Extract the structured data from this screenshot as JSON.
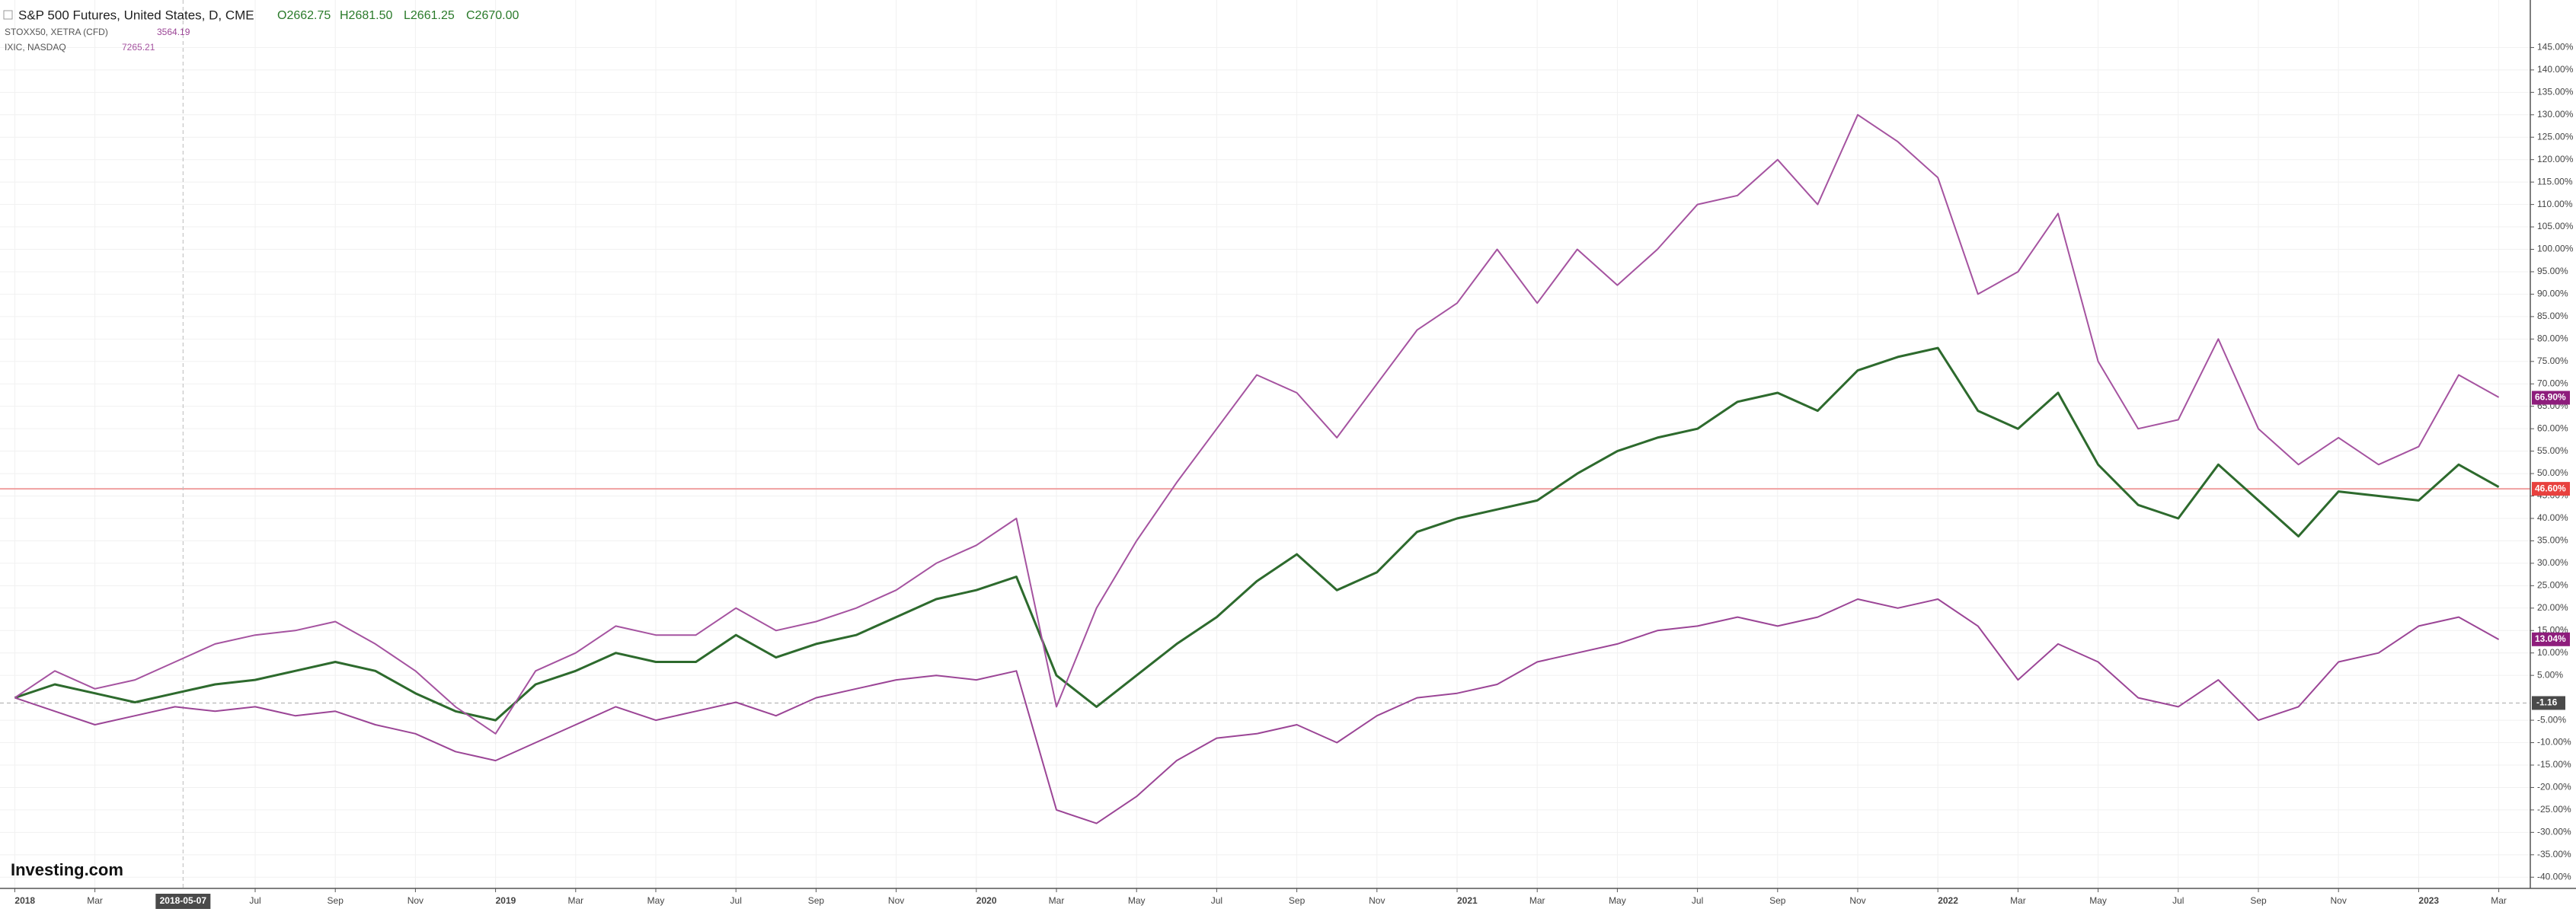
{
  "chart_data": {
    "type": "line",
    "title": "S&P 500 Futures, United States, D, CME",
    "ohlc": [
      "O2662.75",
      "H2681.50",
      "L2661.25",
      "C2670.00"
    ],
    "watermark": "Investing.com",
    "x": [
      "2018-01",
      "2018-02",
      "2018-03",
      "2018-04",
      "2018-05",
      "2018-06",
      "2018-07",
      "2018-08",
      "2018-09",
      "2018-10",
      "2018-11",
      "2018-12",
      "2019-01",
      "2019-02",
      "2019-03",
      "2019-04",
      "2019-05",
      "2019-06",
      "2019-07",
      "2019-08",
      "2019-09",
      "2019-10",
      "2019-11",
      "2019-12",
      "2020-01",
      "2020-02",
      "2020-03",
      "2020-04",
      "2020-05",
      "2020-06",
      "2020-07",
      "2020-08",
      "2020-09",
      "2020-10",
      "2020-11",
      "2020-12",
      "2021-01",
      "2021-02",
      "2021-03",
      "2021-04",
      "2021-05",
      "2021-06",
      "2021-07",
      "2021-08",
      "2021-09",
      "2021-10",
      "2021-11",
      "2021-12",
      "2022-01",
      "2022-02",
      "2022-03",
      "2022-04",
      "2022-05",
      "2022-06",
      "2022-07",
      "2022-08",
      "2022-09",
      "2022-10",
      "2022-11",
      "2022-12",
      "2023-01",
      "2023-02",
      "2023-03"
    ],
    "series": [
      {
        "name": "S&P 500 Futures, United States, D, CME",
        "color": "#2d6a2d",
        "values": [
          0,
          3,
          1,
          -1,
          1,
          3,
          4,
          6,
          8,
          6,
          1,
          -3,
          -5,
          3,
          6,
          10,
          8,
          8,
          14,
          9,
          12,
          14,
          18,
          22,
          24,
          27,
          5,
          -2,
          5,
          12,
          18,
          26,
          32,
          24,
          28,
          37,
          40,
          42,
          44,
          50,
          55,
          58,
          60,
          66,
          68,
          64,
          73,
          76,
          78,
          64,
          60,
          68,
          52,
          43,
          40,
          52,
          44,
          36,
          46,
          45,
          44,
          52,
          47
        ]
      },
      {
        "name": "STOXX50, XETRA (CFD)",
        "quote": 3564.19,
        "color": "#9b4596",
        "values": [
          0,
          -3,
          -6,
          -4,
          -2,
          -3,
          -2,
          -4,
          -3,
          -6,
          -8,
          -12,
          -14,
          -10,
          -6,
          -2,
          -5,
          -3,
          -1,
          -4,
          0,
          2,
          4,
          5,
          4,
          6,
          -25,
          -28,
          -22,
          -14,
          -9,
          -8,
          -6,
          -10,
          -4,
          0,
          1,
          3,
          8,
          10,
          12,
          15,
          16,
          18,
          16,
          18,
          22,
          20,
          22,
          16,
          4,
          12,
          8,
          0,
          -2,
          4,
          -5,
          -2,
          8,
          10,
          16,
          18,
          13
        ],
        "last_tag": {
          "value": 13.04,
          "label": "13.04%"
        }
      },
      {
        "name": "IXIC, NASDAQ",
        "quote": 7265.21,
        "color": "#a553a0",
        "values": [
          0,
          6,
          2,
          4,
          8,
          12,
          14,
          15,
          17,
          12,
          6,
          -2,
          -8,
          6,
          10,
          16,
          14,
          14,
          20,
          15,
          17,
          20,
          24,
          30,
          34,
          40,
          -2,
          20,
          35,
          48,
          60,
          72,
          68,
          58,
          70,
          82,
          88,
          100,
          88,
          100,
          92,
          100,
          110,
          112,
          120,
          110,
          130,
          124,
          116,
          90,
          95,
          108,
          75,
          60,
          62,
          80,
          60,
          52,
          58,
          52,
          56,
          72,
          67
        ],
        "last_tag": {
          "value": 66.9,
          "label": "66.90%"
        }
      }
    ],
    "price_line": {
      "value": 46.6,
      "label": "46.60%",
      "color": "#f0a0a0"
    },
    "baseline": {
      "value": -1.16,
      "label": "-1.16"
    },
    "crosshair": "2018-05-07",
    "ylim": [
      -42.5,
      152.2
    ],
    "yticks": [
      {
        "value": -40,
        "label": "-40.00%"
      },
      {
        "value": -35,
        "label": "-35.00%"
      },
      {
        "value": -30,
        "label": "-30.00%"
      },
      {
        "value": -25,
        "label": "-25.00%"
      },
      {
        "value": -20,
        "label": "-20.00%"
      },
      {
        "value": -15,
        "label": "-15.00%"
      },
      {
        "value": -10,
        "label": "-10.00%"
      },
      {
        "value": -5,
        "label": "-5.00%"
      },
      {
        "value": 5,
        "label": "5.00%"
      },
      {
        "value": 10,
        "label": "10.00%"
      },
      {
        "value": 15,
        "label": "15.00%"
      },
      {
        "value": 20,
        "label": "20.00%"
      },
      {
        "value": 25,
        "label": "25.00%"
      },
      {
        "value": 30,
        "label": "30.00%"
      },
      {
        "value": 35,
        "label": "35.00%"
      },
      {
        "value": 40,
        "label": "40.00%"
      },
      {
        "value": 45,
        "label": "45.00%"
      },
      {
        "value": 50,
        "label": "50.00%"
      },
      {
        "value": 55,
        "label": "55.00%"
      },
      {
        "value": 60,
        "label": "60.00%"
      },
      {
        "value": 65,
        "label": "65.00%"
      },
      {
        "value": 70,
        "label": "70.00%"
      },
      {
        "value": 75,
        "label": "75.00%"
      },
      {
        "value": 80,
        "label": "80.00%"
      },
      {
        "value": 85,
        "label": "85.00%"
      },
      {
        "value": 90,
        "label": "90.00%"
      },
      {
        "value": 95,
        "label": "95.00%"
      },
      {
        "value": 100,
        "label": "100.00%"
      },
      {
        "value": 105,
        "label": "105.00%"
      },
      {
        "value": 110,
        "label": "110.00%"
      },
      {
        "value": 115,
        "label": "115.00%"
      },
      {
        "value": 120,
        "label": "120.00%"
      },
      {
        "value": 125,
        "label": "125.00%"
      },
      {
        "value": 130,
        "label": "130.00%"
      },
      {
        "value": 135,
        "label": "135.00%"
      },
      {
        "value": 140,
        "label": "140.00%"
      },
      {
        "value": 145,
        "label": "145.00%"
      }
    ],
    "xticks": [
      {
        "value": "2018-01",
        "label": "2018"
      },
      {
        "value": "2018-03",
        "label": "Mar"
      },
      {
        "value": "2018-07",
        "label": "Jul"
      },
      {
        "value": "2018-09",
        "label": "Sep"
      },
      {
        "value": "2018-11",
        "label": "Nov"
      },
      {
        "value": "2019-01",
        "label": "2019"
      },
      {
        "value": "2019-03",
        "label": "Mar"
      },
      {
        "value": "2019-05",
        "label": "May"
      },
      {
        "value": "2019-07",
        "label": "Jul"
      },
      {
        "value": "2019-09",
        "label": "Sep"
      },
      {
        "value": "2019-11",
        "label": "Nov"
      },
      {
        "value": "2020-01",
        "label": "2020"
      },
      {
        "value": "2020-03",
        "label": "Mar"
      },
      {
        "value": "2020-05",
        "label": "May"
      },
      {
        "value": "2020-07",
        "label": "Jul"
      },
      {
        "value": "2020-09",
        "label": "Sep"
      },
      {
        "value": "2020-11",
        "label": "Nov"
      },
      {
        "value": "2021-01",
        "label": "2021"
      },
      {
        "value": "2021-03",
        "label": "Mar"
      },
      {
        "value": "2021-05",
        "label": "May"
      },
      {
        "value": "2021-07",
        "label": "Jul"
      },
      {
        "value": "2021-09",
        "label": "Sep"
      },
      {
        "value": "2021-11",
        "label": "Nov"
      },
      {
        "value": "2022-01",
        "label": "2022"
      },
      {
        "value": "2022-03",
        "label": "Mar"
      },
      {
        "value": "2022-05",
        "label": "May"
      },
      {
        "value": "2022-07",
        "label": "Jul"
      },
      {
        "value": "2022-09",
        "label": "Sep"
      },
      {
        "value": "2022-11",
        "label": "Nov"
      },
      {
        "value": "2023-01",
        "label": "2023"
      },
      {
        "value": "2023-03",
        "label": "Mar"
      }
    ],
    "grid": true
  }
}
